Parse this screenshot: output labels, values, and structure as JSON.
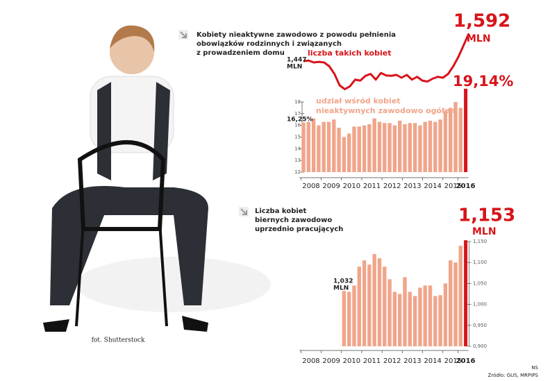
{
  "chart_data": [
    {
      "type": "line",
      "title": [
        "Kobiety nieaktywne zawodowo z powodu pełnienia",
        "obowiązków rodzinnych i związanych",
        "z prowadzeniem domu"
      ],
      "annotation": "liczba takich kobiet",
      "unit": "MLN",
      "color": "#d7141a",
      "values": [
        1.447,
        1.45,
        1.44,
        1.443,
        1.44,
        1.42,
        1.38,
        1.32,
        1.3,
        1.315,
        1.35,
        1.345,
        1.37,
        1.38,
        1.35,
        1.385,
        1.372,
        1.37,
        1.375,
        1.36,
        1.375,
        1.35,
        1.365,
        1.345,
        1.34,
        1.355,
        1.365,
        1.36,
        1.38,
        1.42,
        1.47,
        1.53,
        1.592
      ],
      "value_labels": [
        "1,447",
        null,
        null,
        null,
        null,
        null,
        null,
        null,
        null,
        null,
        null,
        null,
        null,
        null,
        null,
        null,
        null,
        null,
        null,
        null,
        null,
        null,
        null,
        null,
        null,
        null,
        null,
        null,
        null,
        null,
        null,
        null,
        "1,592"
      ],
      "ylim": [
        1.28,
        1.6
      ]
    },
    {
      "type": "bar",
      "annotation": [
        "udział wśród kobiet",
        "nieaktywnych zawodowo ogółem"
      ],
      "color": "#f0a58a",
      "highlight_color": "#d7141a",
      "categories": [
        null,
        "2008",
        null,
        null,
        null,
        "2009",
        null,
        null,
        null,
        "2010",
        null,
        null,
        null,
        "2011",
        null,
        null,
        null,
        "2012",
        null,
        null,
        null,
        "2013",
        null,
        null,
        null,
        "2014",
        null,
        null,
        null,
        "2015",
        null,
        null,
        "2016"
      ],
      "values": [
        16.25,
        16.3,
        16.6,
        16.0,
        16.3,
        16.3,
        16.5,
        15.8,
        15.0,
        15.3,
        15.9,
        15.9,
        16.0,
        16.1,
        16.6,
        16.3,
        16.2,
        16.2,
        16.0,
        16.4,
        16.1,
        16.2,
        16.2,
        16.0,
        16.3,
        16.4,
        16.3,
        16.5,
        17.2,
        17.5,
        18.0,
        17.5,
        19.14
      ],
      "value_labels": [
        "16,25%",
        null,
        null,
        null,
        null,
        null,
        null,
        null,
        null,
        null,
        null,
        null,
        null,
        null,
        null,
        null,
        null,
        null,
        null,
        null,
        null,
        null,
        null,
        null,
        null,
        null,
        null,
        null,
        null,
        null,
        null,
        null,
        "19,14%"
      ],
      "ylim": [
        12,
        19.2
      ],
      "yticks": [
        12,
        13,
        14,
        15,
        16,
        17,
        18
      ]
    },
    {
      "type": "bar",
      "title": [
        "Liczba kobiet",
        "biernych zawodowo",
        "uprzednio pracujących"
      ],
      "unit": "MLN",
      "color": "#f0a58a",
      "highlight_color": "#d7141a",
      "categories": [
        null,
        "2008",
        null,
        null,
        null,
        "2009",
        null,
        null,
        null,
        "2010",
        null,
        null,
        null,
        "2011",
        null,
        null,
        null,
        "2012",
        null,
        null,
        null,
        "2013",
        null,
        null,
        null,
        "2014",
        null,
        null,
        null,
        "2015",
        null,
        null,
        "2016"
      ],
      "values": [
        null,
        null,
        null,
        null,
        null,
        null,
        null,
        null,
        1.032,
        1.03,
        1.045,
        1.09,
        1.105,
        1.095,
        1.12,
        1.11,
        1.09,
        1.06,
        1.03,
        1.025,
        1.065,
        1.03,
        1.02,
        1.04,
        1.045,
        1.045,
        1.02,
        1.022,
        1.05,
        1.105,
        1.1,
        1.14,
        1.153
      ],
      "value_labels": [
        null,
        null,
        null,
        null,
        null,
        null,
        null,
        null,
        "1,032",
        null,
        null,
        null,
        null,
        null,
        null,
        null,
        null,
        null,
        null,
        null,
        null,
        null,
        null,
        null,
        null,
        null,
        null,
        null,
        null,
        null,
        null,
        null,
        "1,153"
      ],
      "ylim": [
        0.9,
        1.16
      ],
      "yticks": [
        {
          "value": 0.9,
          "label": "0,900"
        },
        {
          "value": 0.95,
          "label": "0,950"
        },
        {
          "value": 1.0,
          "label": "1,000"
        },
        {
          "value": 1.05,
          "label": "1,050"
        },
        {
          "value": 1.1,
          "label": "1,100"
        },
        {
          "value": 1.15,
          "label": "1,150"
        }
      ]
    }
  ],
  "photo_credit": "fot. Shutterstock",
  "author": "NS",
  "source": "Źródło: GUS, MRPIPS"
}
